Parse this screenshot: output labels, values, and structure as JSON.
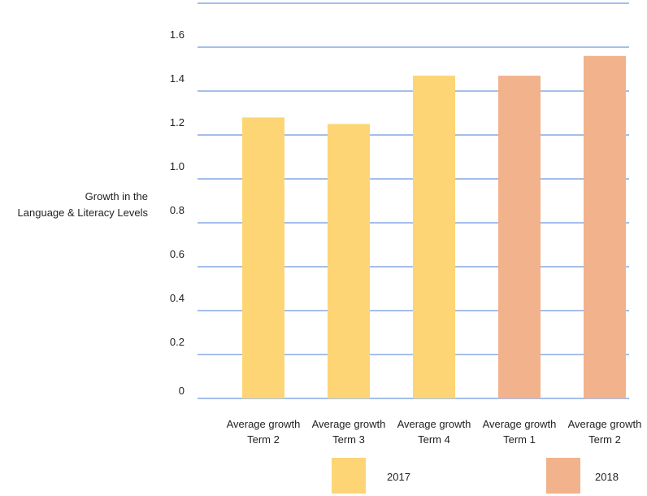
{
  "chart_data": {
    "type": "bar",
    "ylabel_lines": [
      "Growth in the",
      "Language & Literacy Levels"
    ],
    "categories": [
      [
        "Average growth",
        "Term 2"
      ],
      [
        "Average growth",
        "Term 3"
      ],
      [
        "Average growth",
        "Term 4"
      ],
      [
        "Average growth",
        "Term 1"
      ],
      [
        "Average growth",
        "Term 2"
      ]
    ],
    "values": [
      1.28,
      1.25,
      1.47,
      1.47,
      1.56
    ],
    "bar_series": [
      0,
      0,
      0,
      1,
      1
    ],
    "series": [
      {
        "name": "2017",
        "color": "#fdd574"
      },
      {
        "name": "2018",
        "color": "#f2b28c"
      }
    ],
    "ylim": [
      0,
      1.8
    ],
    "yticks": [
      {
        "value": 0,
        "label": "0"
      },
      {
        "value": 0.2,
        "label": "0.2"
      },
      {
        "value": 0.4,
        "label": "0.4"
      },
      {
        "value": 0.6,
        "label": "0.6"
      },
      {
        "value": 0.8,
        "label": "0.8"
      },
      {
        "value": 1.0,
        "label": "1.0"
      },
      {
        "value": 1.2,
        "label": "1.2"
      },
      {
        "value": 1.4,
        "label": "1.4"
      },
      {
        "value": 1.6,
        "label": "1.6"
      }
    ],
    "grid": true,
    "grid_color": "#4a7fd4",
    "legend_position": "bottom"
  }
}
